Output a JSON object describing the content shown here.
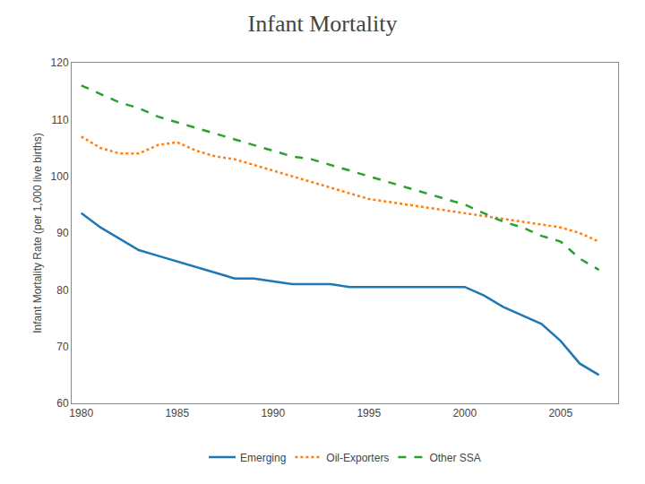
{
  "chart_data": {
    "type": "line",
    "title": "Infant Mortality",
    "ylabel": "Infant Mortality Rate (per 1,000 live births)",
    "x": [
      1980,
      1981,
      1982,
      1983,
      1984,
      1985,
      1986,
      1987,
      1988,
      1989,
      1990,
      1991,
      1992,
      1993,
      1994,
      1995,
      1996,
      1997,
      1998,
      1999,
      2000,
      2001,
      2002,
      2003,
      2004,
      2005,
      2006,
      2007
    ],
    "series": [
      {
        "name": "Emerging",
        "line_style": "solid",
        "values": [
          93.5,
          91,
          89,
          87,
          86,
          85,
          84,
          83,
          82,
          82,
          81.5,
          81,
          81,
          81,
          80.5,
          80.5,
          80.5,
          80.5,
          80.5,
          80.5,
          80.5,
          79,
          77,
          75.5,
          74,
          71,
          67,
          65
        ]
      },
      {
        "name": "Oil-Exporters",
        "line_style": "dotted",
        "values": [
          107,
          105,
          104,
          104,
          105.5,
          106,
          104.5,
          103.5,
          103,
          102,
          101,
          100,
          99,
          98,
          97,
          96,
          95.5,
          95,
          94.5,
          94,
          93.5,
          93,
          92.5,
          92,
          91.5,
          91,
          90,
          88.5
        ]
      },
      {
        "name": "Other SSA",
        "line_style": "dashed",
        "values": [
          116,
          114.5,
          113,
          112,
          110.5,
          109.5,
          108.5,
          107.5,
          106.5,
          105.5,
          104.5,
          103.5,
          103,
          102,
          101,
          100,
          99,
          98,
          97,
          96,
          95,
          93.5,
          92,
          91,
          89.5,
          88.5,
          85.5,
          83.5
        ]
      }
    ],
    "xlim": [
      1979.5,
      2008
    ],
    "xticks": [
      1980,
      1985,
      1990,
      1995,
      2000,
      2005
    ],
    "ylim": [
      60,
      120
    ],
    "yticks": [
      60,
      70,
      80,
      90,
      100,
      110,
      120
    ],
    "grid": false,
    "legend": "bottom"
  }
}
